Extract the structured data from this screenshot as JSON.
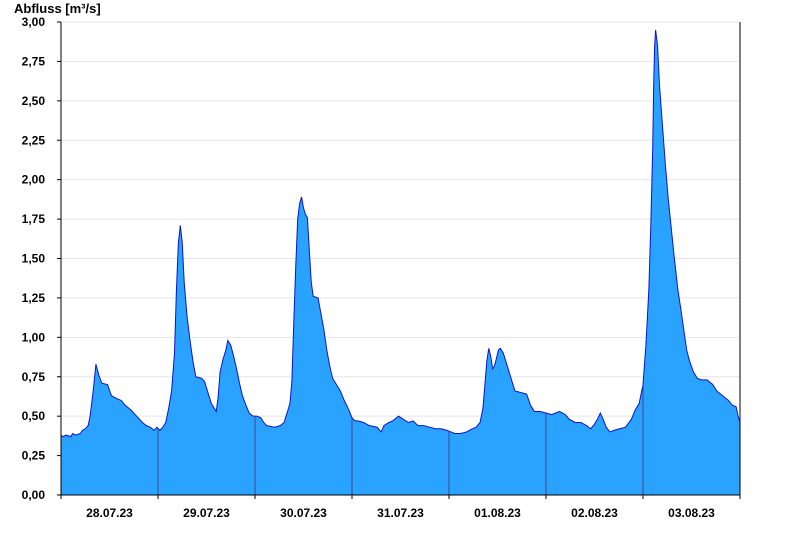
{
  "chart_data": {
    "type": "area",
    "ylabel": "Abfluss [m³/s]",
    "ylim": [
      0,
      3.0
    ],
    "yticks": [
      "0,00",
      "0,25",
      "0,50",
      "0,75",
      "1,00",
      "1,25",
      "1,50",
      "1,75",
      "2,00",
      "2,25",
      "2,50",
      "2,75",
      "3,00"
    ],
    "xrange_days": [
      0,
      7
    ],
    "xtick_labels": [
      "28.07.23",
      "29.07.23",
      "30.07.23",
      "31.07.23",
      "01.08.23",
      "02.08.23",
      "03.08.23"
    ],
    "grid": true,
    "colors": {
      "fill": "#29a3ff",
      "line": "#0a14c8",
      "day_separator": "#3a4a8a",
      "grid": "#e6e6e6"
    },
    "series": [
      {
        "points": [
          [
            0.0,
            0.38
          ],
          [
            0.02,
            0.37
          ],
          [
            0.05,
            0.38
          ],
          [
            0.1,
            0.37
          ],
          [
            0.12,
            0.39
          ],
          [
            0.15,
            0.38
          ],
          [
            0.2,
            0.39
          ],
          [
            0.22,
            0.41
          ],
          [
            0.25,
            0.42
          ],
          [
            0.28,
            0.44
          ],
          [
            0.3,
            0.5
          ],
          [
            0.33,
            0.65
          ],
          [
            0.36,
            0.83
          ],
          [
            0.39,
            0.76
          ],
          [
            0.42,
            0.71
          ],
          [
            0.48,
            0.7
          ],
          [
            0.52,
            0.63
          ],
          [
            0.58,
            0.61
          ],
          [
            0.62,
            0.6
          ],
          [
            0.66,
            0.57
          ],
          [
            0.72,
            0.54
          ],
          [
            0.78,
            0.5
          ],
          [
            0.84,
            0.46
          ],
          [
            0.88,
            0.44
          ],
          [
            0.92,
            0.43
          ],
          [
            0.96,
            0.41
          ],
          [
            0.99,
            0.43
          ],
          [
            1.02,
            0.41
          ],
          [
            1.05,
            0.43
          ],
          [
            1.08,
            0.46
          ],
          [
            1.11,
            0.55
          ],
          [
            1.14,
            0.66
          ],
          [
            1.17,
            0.9
          ],
          [
            1.19,
            1.3
          ],
          [
            1.21,
            1.6
          ],
          [
            1.23,
            1.71
          ],
          [
            1.25,
            1.6
          ],
          [
            1.27,
            1.35
          ],
          [
            1.3,
            1.13
          ],
          [
            1.33,
            0.98
          ],
          [
            1.36,
            0.85
          ],
          [
            1.39,
            0.75
          ],
          [
            1.45,
            0.74
          ],
          [
            1.48,
            0.72
          ],
          [
            1.52,
            0.64
          ],
          [
            1.55,
            0.58
          ],
          [
            1.58,
            0.55
          ],
          [
            1.6,
            0.53
          ],
          [
            1.62,
            0.62
          ],
          [
            1.64,
            0.78
          ],
          [
            1.67,
            0.86
          ],
          [
            1.7,
            0.92
          ],
          [
            1.72,
            0.98
          ],
          [
            1.75,
            0.95
          ],
          [
            1.78,
            0.88
          ],
          [
            1.81,
            0.8
          ],
          [
            1.84,
            0.71
          ],
          [
            1.87,
            0.63
          ],
          [
            1.9,
            0.58
          ],
          [
            1.94,
            0.52
          ],
          [
            1.98,
            0.5
          ],
          [
            2.02,
            0.5
          ],
          [
            2.06,
            0.49
          ],
          [
            2.09,
            0.46
          ],
          [
            2.12,
            0.44
          ],
          [
            2.2,
            0.43
          ],
          [
            2.26,
            0.44
          ],
          [
            2.3,
            0.46
          ],
          [
            2.33,
            0.52
          ],
          [
            2.36,
            0.58
          ],
          [
            2.38,
            0.72
          ],
          [
            2.4,
            1.1
          ],
          [
            2.42,
            1.45
          ],
          [
            2.44,
            1.75
          ],
          [
            2.46,
            1.85
          ],
          [
            2.48,
            1.89
          ],
          [
            2.5,
            1.82
          ],
          [
            2.52,
            1.78
          ],
          [
            2.54,
            1.76
          ],
          [
            2.56,
            1.55
          ],
          [
            2.58,
            1.35
          ],
          [
            2.6,
            1.26
          ],
          [
            2.65,
            1.25
          ],
          [
            2.68,
            1.15
          ],
          [
            2.71,
            1.05
          ],
          [
            2.74,
            0.92
          ],
          [
            2.77,
            0.82
          ],
          [
            2.8,
            0.74
          ],
          [
            2.84,
            0.7
          ],
          [
            2.88,
            0.66
          ],
          [
            2.92,
            0.6
          ],
          [
            2.96,
            0.55
          ],
          [
            3.0,
            0.49
          ],
          [
            3.03,
            0.47
          ],
          [
            3.06,
            0.47
          ],
          [
            3.12,
            0.46
          ],
          [
            3.18,
            0.44
          ],
          [
            3.26,
            0.43
          ],
          [
            3.3,
            0.4
          ],
          [
            3.33,
            0.44
          ],
          [
            3.38,
            0.46
          ],
          [
            3.42,
            0.47
          ],
          [
            3.48,
            0.5
          ],
          [
            3.53,
            0.48
          ],
          [
            3.58,
            0.46
          ],
          [
            3.63,
            0.47
          ],
          [
            3.68,
            0.44
          ],
          [
            3.74,
            0.44
          ],
          [
            3.8,
            0.43
          ],
          [
            3.86,
            0.42
          ],
          [
            3.92,
            0.42
          ],
          [
            3.98,
            0.41
          ],
          [
            4.02,
            0.4
          ],
          [
            4.06,
            0.39
          ],
          [
            4.12,
            0.39
          ],
          [
            4.18,
            0.4
          ],
          [
            4.24,
            0.42
          ],
          [
            4.28,
            0.43
          ],
          [
            4.32,
            0.46
          ],
          [
            4.35,
            0.55
          ],
          [
            4.37,
            0.7
          ],
          [
            4.39,
            0.85
          ],
          [
            4.41,
            0.93
          ],
          [
            4.43,
            0.88
          ],
          [
            4.45,
            0.8
          ],
          [
            4.47,
            0.82
          ],
          [
            4.49,
            0.87
          ],
          [
            4.51,
            0.92
          ],
          [
            4.53,
            0.93
          ],
          [
            4.56,
            0.9
          ],
          [
            4.59,
            0.84
          ],
          [
            4.62,
            0.78
          ],
          [
            4.65,
            0.72
          ],
          [
            4.68,
            0.66
          ],
          [
            4.74,
            0.65
          ],
          [
            4.8,
            0.64
          ],
          [
            4.84,
            0.57
          ],
          [
            4.88,
            0.53
          ],
          [
            4.94,
            0.53
          ],
          [
            5.0,
            0.52
          ],
          [
            5.06,
            0.51
          ],
          [
            5.1,
            0.52
          ],
          [
            5.14,
            0.53
          ],
          [
            5.2,
            0.51
          ],
          [
            5.24,
            0.48
          ],
          [
            5.3,
            0.46
          ],
          [
            5.36,
            0.46
          ],
          [
            5.42,
            0.44
          ],
          [
            5.46,
            0.42
          ],
          [
            5.5,
            0.45
          ],
          [
            5.53,
            0.48
          ],
          [
            5.56,
            0.52
          ],
          [
            5.59,
            0.48
          ],
          [
            5.62,
            0.43
          ],
          [
            5.66,
            0.4
          ],
          [
            5.7,
            0.41
          ],
          [
            5.76,
            0.42
          ],
          [
            5.82,
            0.43
          ],
          [
            5.88,
            0.48
          ],
          [
            5.92,
            0.54
          ],
          [
            5.96,
            0.58
          ],
          [
            6.0,
            0.7
          ],
          [
            6.03,
            0.95
          ],
          [
            6.06,
            1.3
          ],
          [
            6.08,
            1.7
          ],
          [
            6.1,
            2.2
          ],
          [
            6.11,
            2.6
          ],
          [
            6.12,
            2.85
          ],
          [
            6.13,
            2.95
          ],
          [
            6.15,
            2.85
          ],
          [
            6.17,
            2.6
          ],
          [
            6.2,
            2.35
          ],
          [
            6.23,
            2.1
          ],
          [
            6.26,
            1.88
          ],
          [
            6.29,
            1.7
          ],
          [
            6.32,
            1.52
          ],
          [
            6.36,
            1.3
          ],
          [
            6.39,
            1.18
          ],
          [
            6.42,
            1.05
          ],
          [
            6.45,
            0.92
          ],
          [
            6.48,
            0.85
          ],
          [
            6.52,
            0.78
          ],
          [
            6.56,
            0.74
          ],
          [
            6.6,
            0.73
          ],
          [
            6.66,
            0.73
          ],
          [
            6.72,
            0.7
          ],
          [
            6.76,
            0.66
          ],
          [
            6.8,
            0.64
          ],
          [
            6.84,
            0.62
          ],
          [
            6.88,
            0.6
          ],
          [
            6.92,
            0.57
          ],
          [
            6.96,
            0.56
          ],
          [
            6.98,
            0.5
          ],
          [
            7.0,
            0.46
          ]
        ]
      }
    ]
  }
}
